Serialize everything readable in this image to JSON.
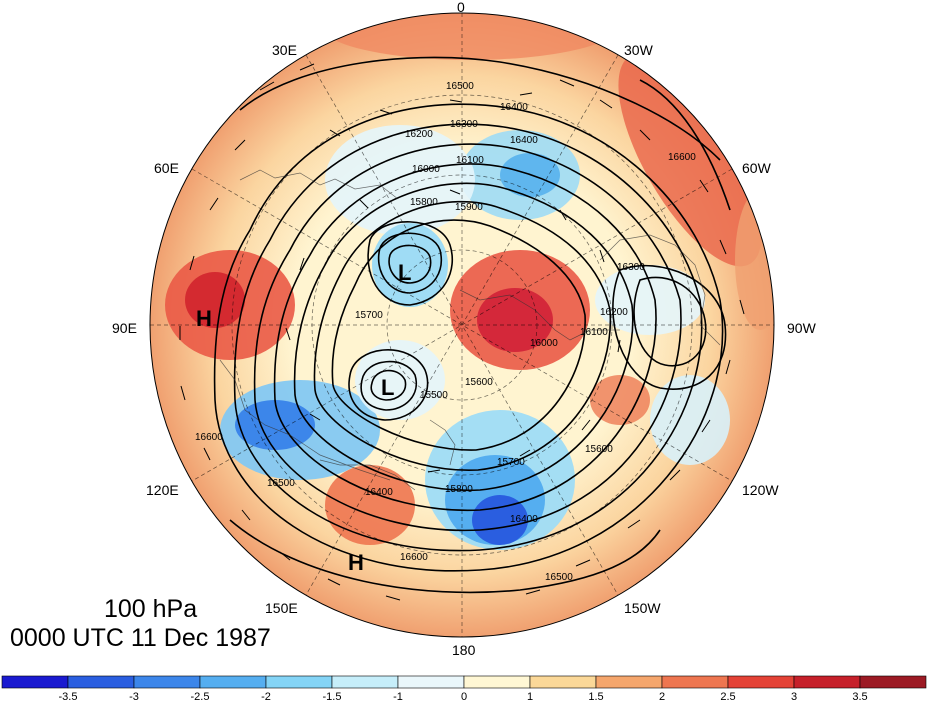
{
  "title": {
    "level": "100 hPa",
    "time": "0000 UTC 11 Dec 1987"
  },
  "longitude_labels": [
    "0",
    "30W",
    "60W",
    "90W",
    "120W",
    "150W",
    "180",
    "150E",
    "120E",
    "90E",
    "60E",
    "30E"
  ],
  "pressure_centers": [
    {
      "type": "H",
      "label": "H"
    },
    {
      "type": "H",
      "label": "H"
    },
    {
      "type": "L",
      "label": "L"
    },
    {
      "type": "L",
      "label": "L"
    }
  ],
  "contour_labels": [
    "16500",
    "16400",
    "16300",
    "16200",
    "16100",
    "16000",
    "15900",
    "15800",
    "15700",
    "15600",
    "16600",
    "16400",
    "16300",
    "16200",
    "16100",
    "16000",
    "15800",
    "15700",
    "15600",
    "15500",
    "16400",
    "16500",
    "16600",
    "16400",
    "16500",
    "16600"
  ],
  "colorbar": {
    "ticks": [
      "-3.5",
      "-3",
      "-2.5",
      "-2",
      "-1.5",
      "-1",
      "0",
      "1",
      "1.5",
      "2",
      "2.5",
      "3",
      "3.5"
    ],
    "colors": [
      "#1a1ad0",
      "#2a5ee0",
      "#3c86ea",
      "#55aef0",
      "#84d4f6",
      "#c6eefa",
      "#eaf7fb",
      "#fff7d4",
      "#fbd898",
      "#f5a66c",
      "#ee7650",
      "#e44236",
      "#c6202a",
      "#9c1a24"
    ]
  }
}
